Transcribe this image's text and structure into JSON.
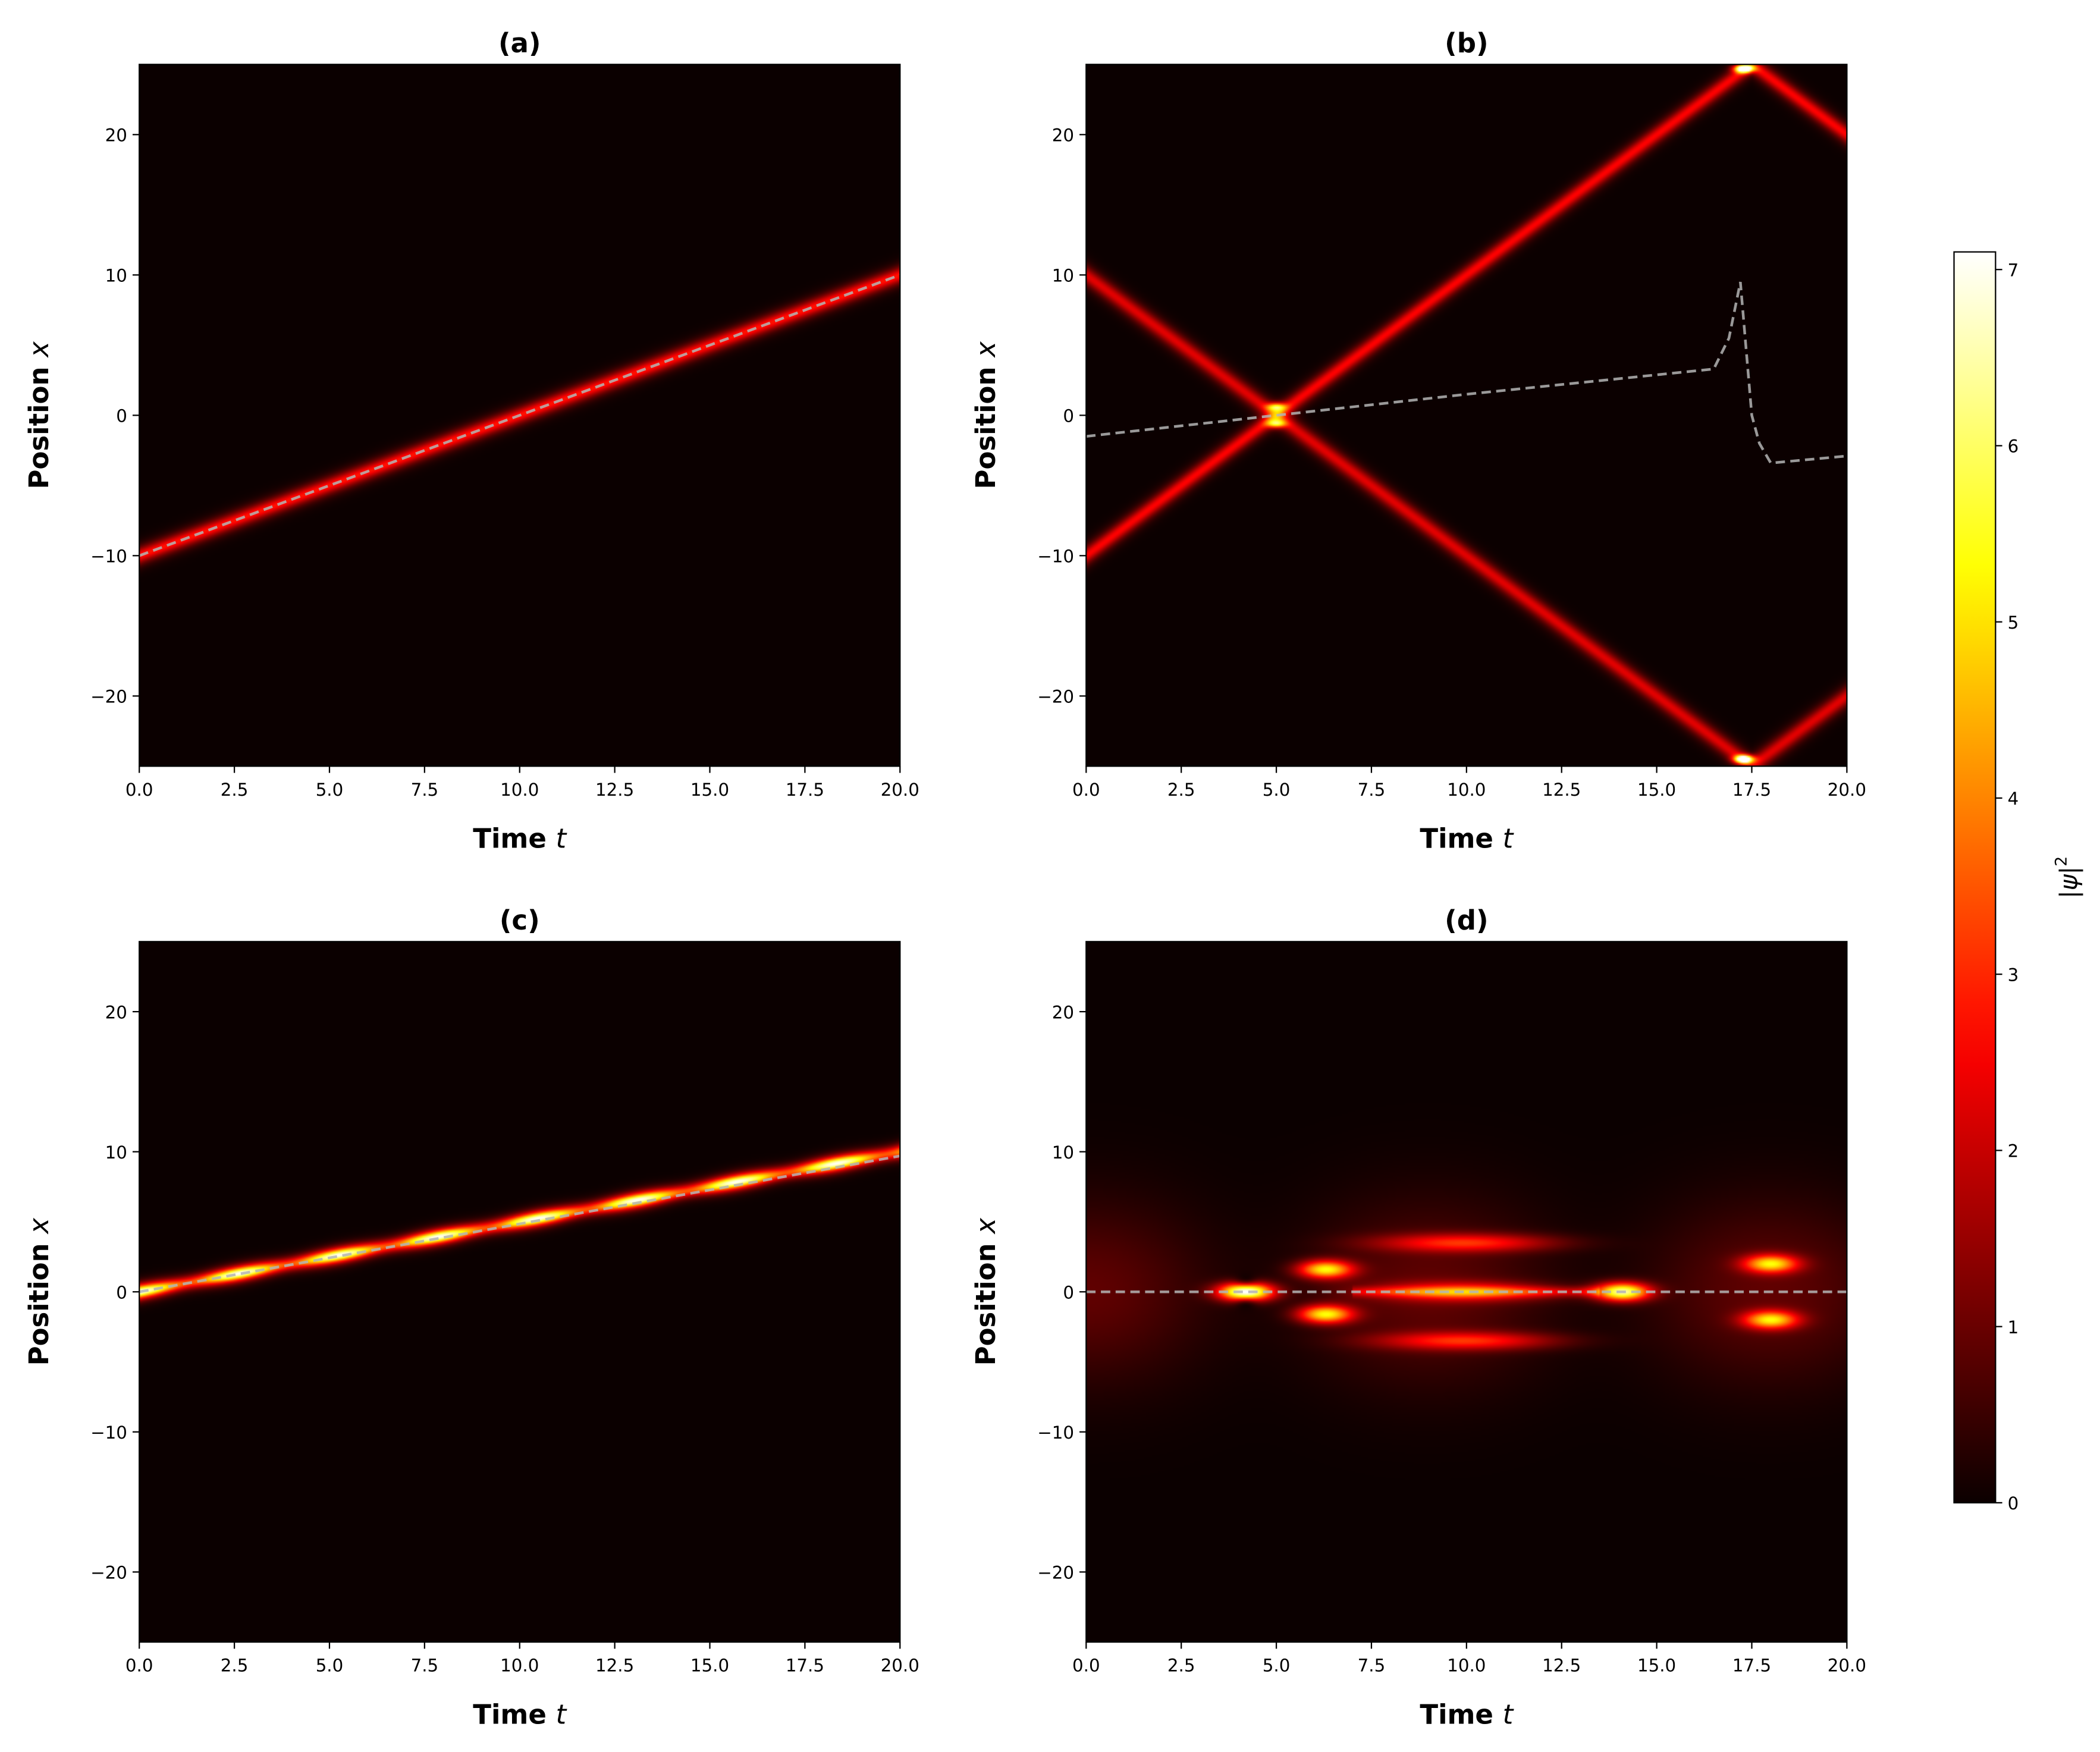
{
  "figure": {
    "colorbar": {
      "label": "|ψ|²",
      "label_main": "|ψ|",
      "label_sup": "2",
      "range": [
        0,
        7.1
      ],
      "ticks": [
        "0",
        "1",
        "2",
        "3",
        "4",
        "5",
        "6",
        "7"
      ],
      "colormap": "hot"
    },
    "dashed_line_color": "#b4b4b4"
  },
  "chart_data": [
    {
      "type": "heatmap",
      "title": "(a)",
      "xlabel": "Time t",
      "xlabel_main": "Time ",
      "xlabel_var": "t",
      "ylabel": "Position x",
      "ylabel_main": "Position ",
      "ylabel_var": "x",
      "xlim": [
        0,
        20
      ],
      "ylim": [
        -25,
        25
      ],
      "xticks": [
        "0.0",
        "2.5",
        "5.0",
        "7.5",
        "10.0",
        "12.5",
        "15.0",
        "17.5",
        "20.0"
      ],
      "yticks": [
        "−20",
        "−10",
        "0",
        "10",
        "20"
      ],
      "density_tracks": [
        {
          "x0": -10,
          "velocity": 1,
          "peak": 2.8,
          "width": 0.55
        }
      ],
      "dashed_line": {
        "t": [
          0,
          20
        ],
        "x": [
          -10,
          10
        ]
      }
    },
    {
      "type": "heatmap",
      "title": "(b)",
      "xlabel": "Time t",
      "xlabel_main": "Time ",
      "xlabel_var": "t",
      "ylabel": "Position x",
      "ylabel_main": "Position ",
      "ylabel_var": "x",
      "xlim": [
        0,
        20
      ],
      "ylim": [
        -25,
        25
      ],
      "xticks": [
        "0.0",
        "2.5",
        "5.0",
        "7.5",
        "10.0",
        "12.5",
        "15.0",
        "17.5",
        "20.0"
      ],
      "yticks": [
        "−20",
        "−10",
        "0",
        "10",
        "20"
      ],
      "density_tracks": [
        {
          "x0": -10,
          "velocity": 2,
          "peak": 2.6,
          "width": 0.6,
          "reflect_at": 25
        },
        {
          "x0": 10,
          "velocity": -2,
          "peak": 2.3,
          "width": 0.65,
          "reflect_at": -25
        }
      ],
      "collisions": [
        {
          "t": 5,
          "x": 0
        },
        {
          "t": 17.3,
          "x": 24.7
        },
        {
          "t": 17.3,
          "x": -24.5
        }
      ],
      "dashed_line": {
        "t": [
          0,
          5,
          10,
          16.5,
          16.9,
          17.2,
          17.5,
          17.7,
          18,
          20
        ],
        "x": [
          -1.5,
          0,
          1.5,
          3.3,
          5.5,
          9.5,
          0,
          -2,
          -3.4,
          -2.9
        ]
      }
    },
    {
      "type": "heatmap",
      "title": "(c)",
      "xlabel": "Time t",
      "xlabel_main": "Time ",
      "xlabel_var": "t",
      "ylabel": "Position x",
      "ylabel_main": "Position ",
      "ylabel_var": "x",
      "xlim": [
        0,
        20
      ],
      "ylim": [
        -25,
        25
      ],
      "xticks": [
        "0.0",
        "2.5",
        "5.0",
        "7.5",
        "10.0",
        "12.5",
        "15.0",
        "17.5",
        "20.0"
      ],
      "yticks": [
        "−20",
        "−10",
        "0",
        "10",
        "20"
      ],
      "density_tracks": [
        {
          "x0": 0,
          "velocity": 0.5,
          "peak": 7.1,
          "width": 0.45
        }
      ],
      "dashed_line": {
        "t": [
          0,
          20
        ],
        "x": [
          0,
          9.7
        ]
      }
    },
    {
      "type": "heatmap",
      "title": "(d)",
      "xlabel": "Time t",
      "xlabel_main": "Time ",
      "xlabel_var": "t",
      "ylabel": "Position x",
      "ylabel_main": "Position ",
      "ylabel_var": "x",
      "xlim": [
        0,
        20
      ],
      "ylim": [
        -25,
        25
      ],
      "xticks": [
        "0.0",
        "2.5",
        "5.0",
        "7.5",
        "10.0",
        "12.5",
        "15.0",
        "17.5",
        "20.0"
      ],
      "yticks": [
        "−20",
        "−10",
        "0",
        "10",
        "20"
      ],
      "density_peaks": [
        {
          "t": 4.2,
          "x": 0,
          "value": 7.1
        },
        {
          "t": 6.3,
          "x": 1.6,
          "value": 5
        },
        {
          "t": 6.3,
          "x": -1.6,
          "value": 5
        },
        {
          "t": 10,
          "x": 3.5,
          "value": 2.6
        },
        {
          "t": 10,
          "x": -3.5,
          "value": 2.6
        },
        {
          "t": 10,
          "x": 0,
          "value": 3
        },
        {
          "t": 14.1,
          "x": 0,
          "value": 6.2
        },
        {
          "t": 18,
          "x": 2,
          "value": 4.6
        },
        {
          "t": 18,
          "x": -2,
          "value": 4.6
        }
      ],
      "dashed_line": {
        "t": [
          0,
          20
        ],
        "x": [
          0,
          0
        ]
      }
    }
  ]
}
